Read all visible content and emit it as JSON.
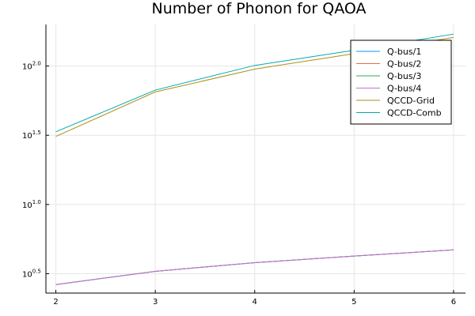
{
  "chart_data": {
    "type": "line",
    "title": "Number of Phonon for QAOA",
    "xlabel": "",
    "ylabel": "",
    "x": [
      2,
      3,
      4,
      5,
      6
    ],
    "xlim": [
      1.9,
      6.12
    ],
    "ylim": [
      0.36,
      2.3
    ],
    "y_scale": "log10",
    "x_ticks": [
      "2",
      "3",
      "4",
      "5",
      "6"
    ],
    "y_ticks": [
      {
        "value": 0.5,
        "base": "10",
        "exp": "0.5"
      },
      {
        "value": 1.0,
        "base": "10",
        "exp": "1.0"
      },
      {
        "value": 1.5,
        "base": "10",
        "exp": "1.5"
      },
      {
        "value": 2.0,
        "base": "10",
        "exp": "2.0"
      }
    ],
    "grid": true,
    "legend_position": "top-right",
    "series": [
      {
        "name": "Q-bus/1",
        "color": "#009AFA",
        "values": [
          2.64,
          3.29,
          3.8,
          4.24,
          4.7
        ]
      },
      {
        "name": "Q-bus/2",
        "color": "#E36F47",
        "values": [
          2.64,
          3.29,
          3.8,
          4.24,
          4.7
        ]
      },
      {
        "name": "Q-bus/3",
        "color": "#3EA44E",
        "values": [
          2.64,
          3.29,
          3.8,
          4.24,
          4.7
        ]
      },
      {
        "name": "Q-bus/4",
        "color": "#C371D2",
        "values": [
          2.64,
          3.29,
          3.8,
          4.24,
          4.7
        ]
      },
      {
        "name": "QCCD-Grid",
        "color": "#AC8E18",
        "values": [
          31,
          65,
          95,
          123,
          161
        ]
      },
      {
        "name": "QCCD-Comb",
        "color": "#00AAAE",
        "values": [
          33.5,
          67,
          101,
          130,
          170
        ]
      }
    ]
  }
}
